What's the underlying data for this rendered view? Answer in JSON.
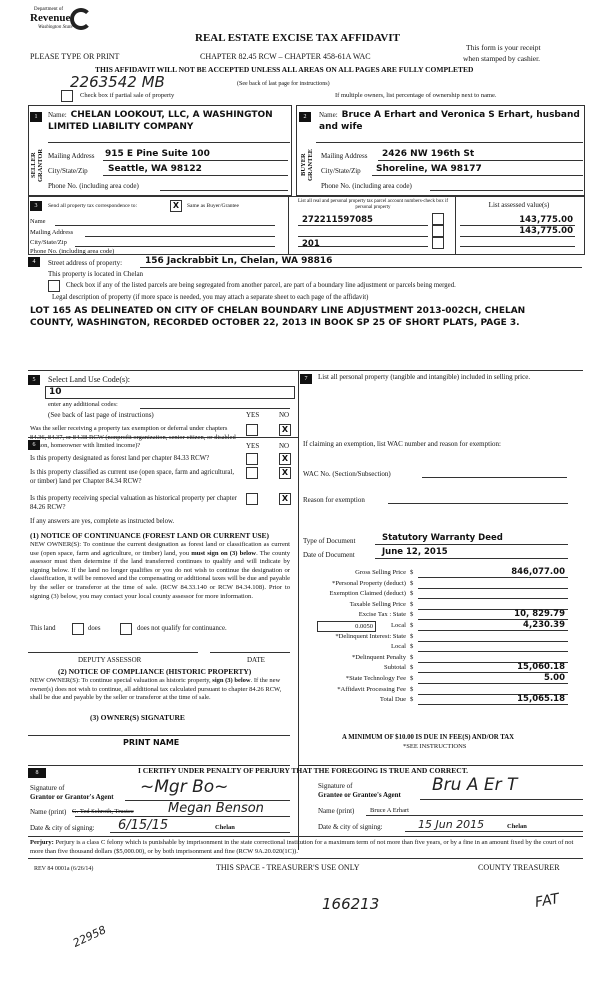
{
  "header": {
    "logo_dept": "Department of",
    "logo_name": "Revenue",
    "logo_state": "Washington State",
    "title": "REAL ESTATE EXCISE TAX AFFIDAVIT",
    "please": "PLEASE TYPE OR PRINT",
    "chapter": "CHAPTER 82.45 RCW – CHAPTER 458-61A WAC",
    "receipt1": "This form is your receipt",
    "receipt2": "when stamped by cashier.",
    "warning": "THIS AFFIDAVIT WILL NOT BE ACCEPTED UNLESS ALL AREAS ON ALL PAGES ARE FULLY COMPLETED",
    "see_back": "(See back of last page for instructions)",
    "handwritten_id": "2263542 MB",
    "partial_label": "Check box if partial sale of property",
    "multiple_owners": "If multiple owners, list percentage of ownership next to name."
  },
  "seller": {
    "num": "1",
    "side": "SELLER GRANTOR",
    "name_label": "Name:",
    "name": "CHELAN LOOKOUT, LLC, A WASHINGTON LIMITED LIABILITY COMPANY",
    "mail_label": "Mailing Address",
    "mail": "915 E Pine Suite 100",
    "city_label": "City/State/Zip",
    "city": "Seattle, WA 98122",
    "phone_label": "Phone No. (including area code)"
  },
  "buyer": {
    "num": "2",
    "side": "BUYER GRANTEE",
    "name_label": "Name:",
    "name": "Bruce A Erhart and Veronica S Erhart, husband and wife",
    "mail_label": "Mailing Address",
    "mail": "2426 NW 196th St",
    "city_label": "City/State/Zip",
    "city": "Shoreline, WA 98177",
    "phone_label": "Phone No. (including area code)"
  },
  "s3": {
    "num": "3",
    "send_label": "Send all property tax correspondence to:",
    "same_mark": "X",
    "same_label": "Same as Buyer/Grantee",
    "name_label": "Name",
    "mail_label": "Mailing Address",
    "city_label": "City/State/Zip",
    "phone_label": "Phone No. (including area code)",
    "parcel_header": "List all real and personal property tax parcel account numbers-check box if personal property",
    "assessed_header": "List assessed value(s)",
    "parcels": [
      "272211597085",
      "",
      "",
      "201"
    ],
    "values": [
      "143,775.00",
      "143,775.00",
      "",
      ""
    ]
  },
  "s4": {
    "num": "4",
    "street_label": "Street address of property:",
    "street": "156 Jackrabbit Ln, Chelan, WA 98816",
    "located": "This property is located in Chelan",
    "segregate": "Check box if any of the listed parcels are being segregated from another parcel, are part of a boundary line adjustment or parcels being merged.",
    "legal_label": "Legal description of property (if more space is needed, you may attach a separate sheet to each page of the affidavit)",
    "legal": "LOT 165 AS DELINEATED ON CITY OF CHELAN BOUNDARY LINE ADJUSTMENT 2013-002CH, CHELAN COUNTY, WASHINGTON, RECORDED OCTOBER 22, 2013 IN BOOK SP 25 OF SHORT PLATS, PAGE 3."
  },
  "s5": {
    "num": "5",
    "label": "Select Land Use Code(s):",
    "code": "10",
    "additional": "enter any additional codes:",
    "see_back": "(See back of last page of instructions)",
    "yes": "YES",
    "no": "NO",
    "q": "Was the seller receiving a property tax exemption or deferral under chapters 84.36, 84.37, or 84.38 RCW (nonprofit organization, senior citizen, or disabled person, homeowner with limited income)?",
    "mark": "X"
  },
  "s6": {
    "num": "6",
    "yes": "YES",
    "no": "NO",
    "questions": [
      "Is this property designated as forest land per chapter 84.33 RCW?",
      "Is this property classified as current use (open space, farm and agricultural, or timber) land per Chapter 84.34 RCW?",
      "Is this property receiving special valuation as historical property per chapter 84.26 RCW?"
    ],
    "mark": "X",
    "if_yes": "If any answers are yes, complete as instructed below.",
    "n1_title": "(1) NOTICE OF CONTINUANCE (FOREST LAND OR CURRENT USE)",
    "n1_pre": "NEW OWNER(S): To continue the current designation as forest land or classification as current use (open space, farm and agriculture, or timber) land, you ",
    "n1_bold": "must sign on (3) below",
    "n1_post": ". The county assessor must then determine if the land transferred continues to qualify and will indicate by signing below. If the land no longer qualifies or you do not wish to continue the designation or classification, it will be removed and the compensating or additional taxes will be due and payable by the seller or transferor at the time of sale. (RCW 84.33.140 or RCW 84.34.108). Prior to signing (3) below, you may contact your local county assessor for more information.",
    "this_land": "This land",
    "does": "does",
    "does_not": "does not qualify for continuance.",
    "deputy": "DEPUTY ASSESSOR",
    "date": "DATE",
    "n2_title": "(2) NOTICE OF COMPLIANCE (HISTORIC PROPERTY)",
    "n2_pre": "NEW OWNER(S): To continue special valuation as historic property, ",
    "n2_bold": "sign (3) below",
    "n2_post": ". If the new owner(s) does not wish to continue, all additional tax calculated pursuant to chapter 84.26 RCW, shall be due and payable by the seller or transferor at the time of sale.",
    "n3_title": "(3) OWNER(S) SIGNATURE",
    "print_name": "PRINT NAME"
  },
  "s7": {
    "num": "7",
    "label": "List all personal property (tangible and intangible) included in selling price.",
    "exemption": "If claiming an exemption, list WAC number and reason for exemption:",
    "wac_label": "WAC No. (Section/Subsection)",
    "reason_label": "Reason for exemption",
    "doc_type_label": "Type of Document",
    "doc_type": "Statutory Warranty Deed",
    "doc_date_label": "Date of Document",
    "doc_date": "June 12, 2015",
    "local_rate": "0.0050",
    "rows": [
      {
        "label": "Gross Selling Price",
        "value": "846,077.00"
      },
      {
        "label": "*Personal Property (deduct)",
        "value": ""
      },
      {
        "label": "Exemption Claimed (deduct)",
        "value": ""
      },
      {
        "label": "Taxable Selling Price",
        "value": ""
      },
      {
        "label": "Excise Tax :  State",
        "value": "10, 829.79"
      },
      {
        "label": "Local",
        "value": "4,230.39"
      },
      {
        "label": "*Delinquent Interest:  State",
        "value": ""
      },
      {
        "label": "Local",
        "value": ""
      },
      {
        "label": "*Delinquent Penalty",
        "value": ""
      },
      {
        "label": "Subtotal",
        "value": "15,060.18"
      },
      {
        "label": "*State Technology Fee",
        "value": "5.00"
      },
      {
        "label": "*Affidavit Processing Fee",
        "value": ""
      },
      {
        "label": "Total Due",
        "value": "15,065.18"
      }
    ],
    "currency": "$",
    "minimum": "A MINIMUM OF $10.00 IS DUE IN FEE(S) AND/OR TAX",
    "see_instr": "*SEE INSTRUCTIONS"
  },
  "s8": {
    "num": "8",
    "certify": "I CERTIFY UNDER PENALTY OF PERJURY THAT THE FOREGOING IS TRUE AND CORRECT.",
    "grantor_sig_label1": "Signature of",
    "grantor_sig_label2": "Grantor or Grantor's Agent",
    "grantor_name_label": "Name (print)",
    "grantor_name_struck": "G. Ted Schroth, Trustee",
    "grantor_name_hw": "Megan Benson",
    "grantor_date_label": "Date & city of signing:",
    "grantor_date": "6/15/15",
    "grantor_city": "Chelan",
    "grantee_sig_label1": "Signature of",
    "grantee_sig_label2": "Grantee or Grantee's Agent",
    "grantee_name_label": "Name (print)",
    "grantee_name": "Bruce A Erhart",
    "grantee_date_label": "Date & city of signing:",
    "grantee_date": "15 Jun 2015",
    "grantee_city": "Chelan"
  },
  "footer": {
    "perjury_label": "Perjury:",
    "perjury": " Perjury is a class C felony which is punishable by imprisonment in the state correctional institution for a maximum term of not more than five years, or by a fine in an amount fixed by the court of not more than five thousand dollars ($5,000.00), or by both imprisonment and fine (RCW 9A.20.020(1C)).",
    "rev": "REV 84 0001a (6/26/14)",
    "treasurer_use": "THIS SPACE - TREASURER'S USE ONLY",
    "county": "COUNTY TREASURER",
    "hw1": "22958",
    "hw2": "166213",
    "hw3": "FAT"
  }
}
